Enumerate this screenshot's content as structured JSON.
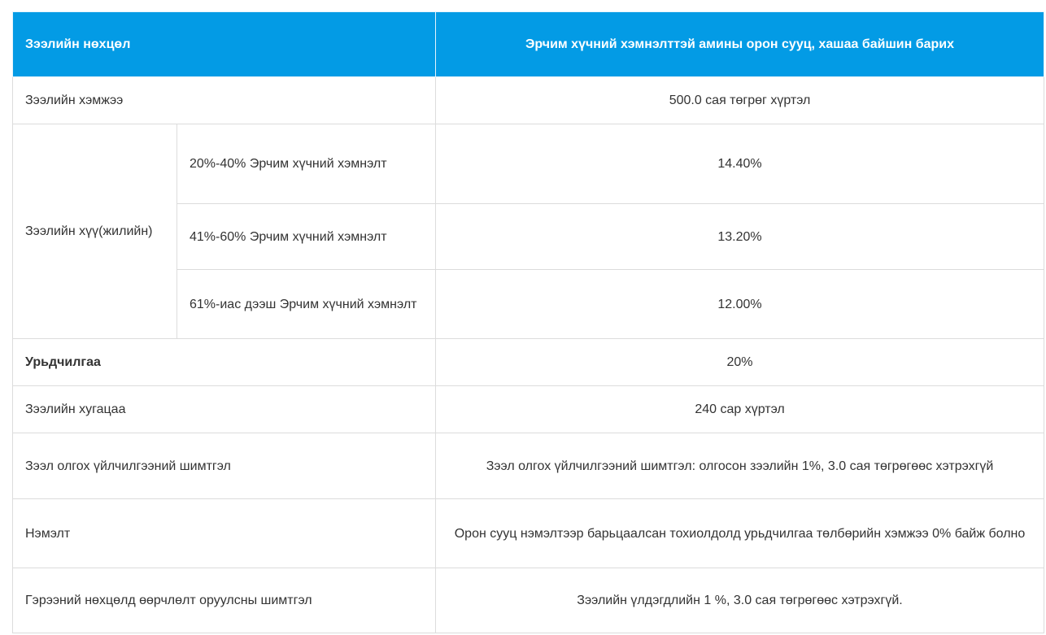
{
  "header": {
    "left": "Зээлийн нөхцөл",
    "right": "Эрчим хүчний хэмнэлттэй амины орон сууц, хашаа байшин барих"
  },
  "rows": {
    "amount": {
      "label": "Зээлийн хэмжээ",
      "value": "500.0 сая төгрөг хүртэл"
    },
    "interest": {
      "label": "Зээлийн хүү(жилийн)",
      "tiers": [
        {
          "label": "20%-40% Эрчим хүчний хэмнэлт",
          "value": "14.40%"
        },
        {
          "label": "41%-60% Эрчим хүчний хэмнэлт",
          "value": "13.20%"
        },
        {
          "label": "61%-иас дээш Эрчим хүчний хэмнэлт",
          "value": "12.00%"
        }
      ]
    },
    "advance": {
      "label": "Урьдчилгаа",
      "value": "20%"
    },
    "term": {
      "label": "Зээлийн хугацаа",
      "value": "240 сар хүртэл"
    },
    "fee": {
      "label": "Зээл олгох үйлчилгээний шимтгэл",
      "value": "Зээл олгох үйлчилгээний шимтгэл: олгосон зээлийн 1%, 3.0 сая төгрөгөөс хэтрэхгүй"
    },
    "extra": {
      "label": "Нэмэлт",
      "value": "Орон сууц нэмэлтээр барьцаалсан тохиолдолд урьдчилгаа төлбөрийн хэмжээ 0% байж болно"
    },
    "change_fee": {
      "label": "Гэрээний нөхцөлд өөрчлөлт оруулсны шимтгэл",
      "value": "Зээлийн үлдэгдлийн 1 %, 3.0 сая төгрөгөөс хэтрэхгүй."
    }
  }
}
